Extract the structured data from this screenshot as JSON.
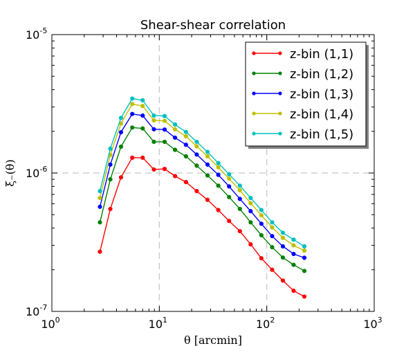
{
  "chart_data": {
    "type": "line",
    "title": "Shear-shear correlation",
    "xlabel": "θ [arcmin]",
    "ylabel": "ξ₋(θ)",
    "xscale": "log",
    "yscale": "log",
    "xlim": [
      1,
      1000
    ],
    "ylim": [
      1e-07,
      1e-05
    ],
    "grid": "dashed at major decades",
    "legend_position": "top-right",
    "x_ticks": [
      {
        "value": 1,
        "base": "10",
        "exp": "0"
      },
      {
        "value": 10,
        "base": "10",
        "exp": "1"
      },
      {
        "value": 100,
        "base": "10",
        "exp": "2"
      },
      {
        "value": 1000,
        "base": "10",
        "exp": "3"
      }
    ],
    "y_ticks": [
      {
        "value": 1e-07,
        "base": "10",
        "exp": "-7"
      },
      {
        "value": 1e-06,
        "base": "10",
        "exp": "-6"
      },
      {
        "value": 1e-05,
        "base": "10",
        "exp": "-5"
      }
    ],
    "x": [
      2.8,
      3.5,
      4.4,
      5.6,
      7.0,
      8.9,
      11.2,
      14.0,
      17.7,
      22.3,
      28.1,
      35.4,
      44.6,
      56.2,
      70.8,
      89.1,
      112.2,
      141.3,
      177.8,
      223.9
    ],
    "series": [
      {
        "name": "z-bin (1,1)",
        "color": "#ff0000",
        "values": [
          2.7e-07,
          5.5e-07,
          9.3e-07,
          1.29e-06,
          1.29e-06,
          1.06e-06,
          1.07e-06,
          9.5e-07,
          8.6e-07,
          7.4e-07,
          6.4e-07,
          5.4e-07,
          4.5e-07,
          3.8e-07,
          3.05e-07,
          2.42e-07,
          2e-07,
          1.67e-07,
          1.41e-07,
          1.28e-07
        ]
      },
      {
        "name": "z-bin (1,2)",
        "color": "#008000",
        "values": [
          4.4e-07,
          9e-07,
          1.55e-06,
          2.13e-06,
          2.1e-06,
          1.68e-06,
          1.68e-06,
          1.47e-06,
          1.32e-06,
          1.13e-06,
          9.6e-07,
          8.1e-07,
          6.7e-07,
          5.5e-07,
          4.4e-07,
          3.55e-07,
          2.91e-07,
          2.45e-07,
          2.17e-07,
          1.96e-07
        ]
      },
      {
        "name": "z-bin (1,3)",
        "color": "#0000ff",
        "values": [
          5.7e-07,
          1.15e-06,
          1.97e-06,
          2.67e-06,
          2.6e-06,
          2.07e-06,
          2.06e-06,
          1.8e-06,
          1.6e-06,
          1.36e-06,
          1.15e-06,
          9.7e-07,
          8e-07,
          6.5e-07,
          5.3e-07,
          4.3e-07,
          3.5e-07,
          2.95e-07,
          2.6e-07,
          2.44e-07
        ]
      },
      {
        "name": "z-bin (1,4)",
        "color": "#bfbf00",
        "values": [
          6.6e-07,
          1.35e-06,
          2.28e-06,
          3.15e-06,
          3.05e-06,
          2.4e-06,
          2.38e-06,
          2.07e-06,
          1.84e-06,
          1.56e-06,
          1.32e-06,
          1.1e-06,
          9.1e-07,
          7.5e-07,
          6.05e-07,
          4.95e-07,
          4.05e-07,
          3.4e-07,
          3e-07,
          2.75e-07
        ]
      },
      {
        "name": "z-bin (1,5)",
        "color": "#00bfbf",
        "values": [
          7.4e-07,
          1.5e-06,
          2.5e-06,
          3.45e-06,
          3.35e-06,
          2.6e-06,
          2.58e-06,
          2.24e-06,
          1.98e-06,
          1.68e-06,
          1.42e-06,
          1.18e-06,
          9.8e-07,
          8.1e-07,
          6.6e-07,
          5.4e-07,
          4.4e-07,
          3.7e-07,
          3.3e-07,
          2.95e-07
        ]
      }
    ]
  }
}
